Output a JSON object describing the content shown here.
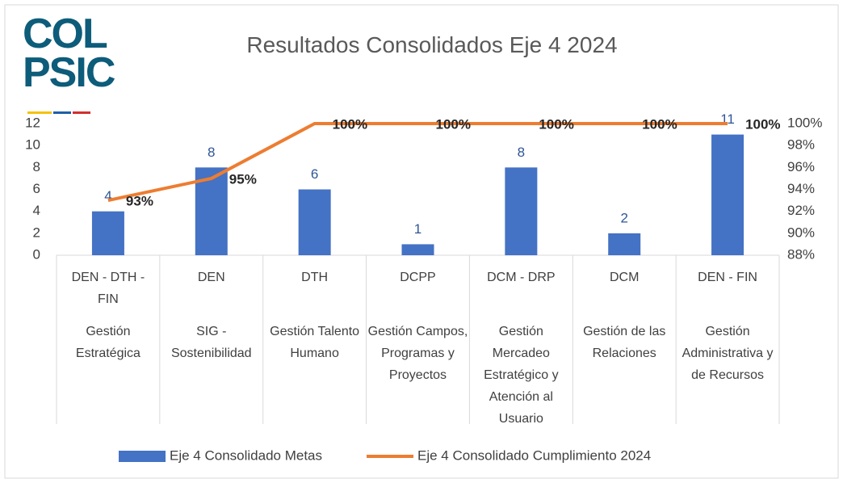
{
  "logo": [
    "COL",
    "PSIC"
  ],
  "chart_data": {
    "type": "bar-line",
    "title": "Resultados Consolidados Eje 4 2024",
    "category_groups": [
      "DEN - DTH - FIN",
      "DEN",
      "DTH",
      "DCPP",
      "DCM - DRP",
      "DCM",
      "DEN - FIN"
    ],
    "categories": [
      "Gestión Estratégica",
      "SIG - Sostenibilidad",
      "Gestión Talento Humano",
      "Gestión Campos, Programas y Proyectos",
      "Gestión Mercadeo Estratégico y Atención al Usuario",
      "Gestión de las Relaciones",
      "Gestión Administrativa y de Recursos"
    ],
    "series": [
      {
        "name": "Eje 4 Consolidado Metas",
        "type": "bar",
        "color": "#4472c4",
        "values": [
          4,
          8,
          6,
          1,
          8,
          2,
          11
        ]
      },
      {
        "name": "Eje 4 Consolidado Cumplimiento 2024",
        "type": "line",
        "axis": "y2",
        "color": "#ed7d31",
        "values": [
          93,
          95,
          100,
          100,
          100,
          100,
          100
        ],
        "value_labels": [
          "93%",
          "95%",
          "100%",
          "100%",
          "100%",
          "100%",
          "100%"
        ]
      }
    ],
    "ylim": [
      0,
      12
    ],
    "yticks": [
      0,
      2,
      4,
      6,
      8,
      10,
      12
    ],
    "y2lim": [
      88,
      100
    ],
    "y2ticks": [
      {
        "value": 88,
        "label": "88%"
      },
      {
        "value": 90,
        "label": "90%"
      },
      {
        "value": 92,
        "label": "92%"
      },
      {
        "value": 94,
        "label": "94%"
      },
      {
        "value": 96,
        "label": "96%"
      },
      {
        "value": 98,
        "label": "98%"
      },
      {
        "value": 100,
        "label": "100%"
      }
    ],
    "grid": false,
    "legend": "bottom"
  }
}
